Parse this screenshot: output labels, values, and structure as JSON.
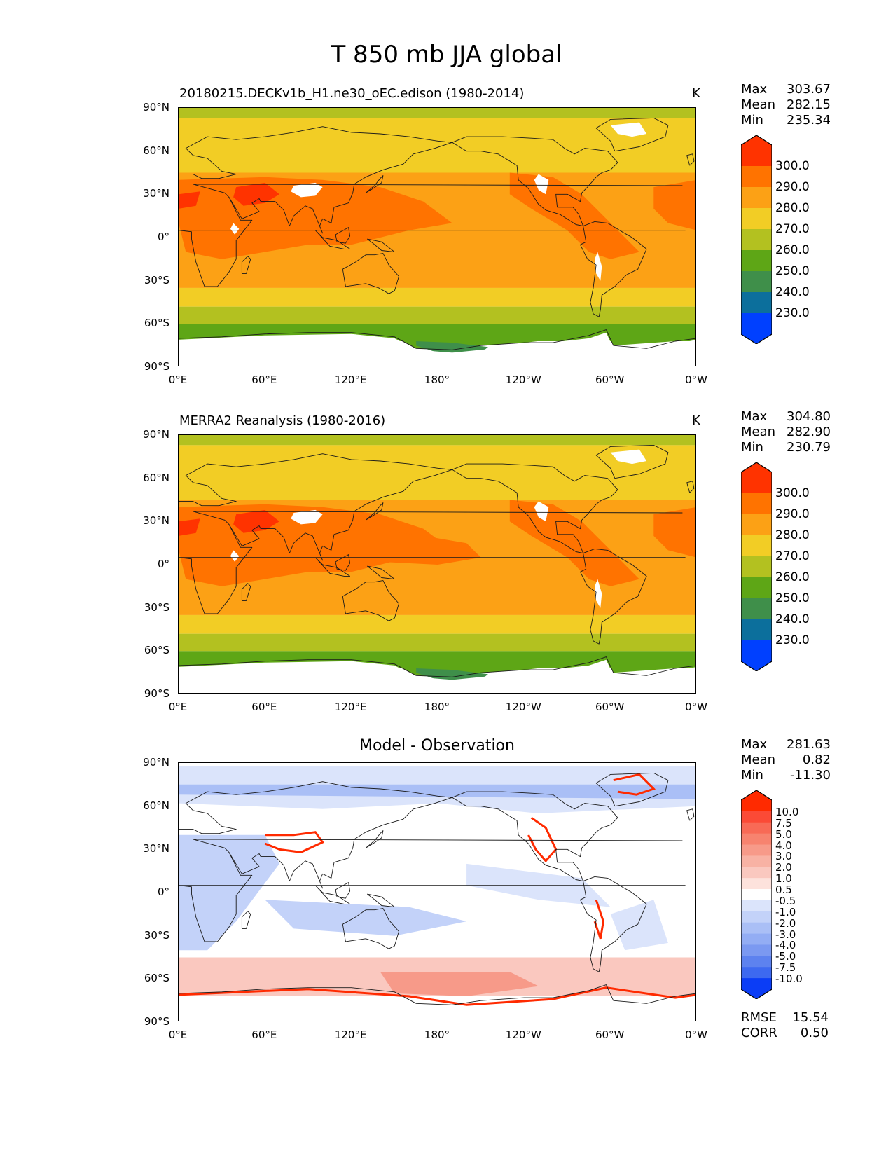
{
  "figure": {
    "title": "T 850 mb JJA global"
  },
  "axes": {
    "lat_labels": [
      "90°N",
      "60°N",
      "30°N",
      "0°",
      "30°S",
      "60°S",
      "90°S"
    ],
    "lon_labels": [
      "0°E",
      "60°E",
      "120°E",
      "180°",
      "120°W",
      "60°W",
      "0°W"
    ]
  },
  "panels": [
    {
      "title": "20180215.DECKv1b_H1.ne30_oEC.edison (1980-2014)",
      "units": "K",
      "stats": {
        "max_label": "Max",
        "max": "303.67",
        "mean_label": "Mean",
        "mean": "282.15",
        "min_label": "Min",
        "min": "235.34"
      },
      "colorbar": {
        "labels": [
          "300.0",
          "290.0",
          "280.0",
          "270.0",
          "260.0",
          "250.0",
          "240.0",
          "230.0"
        ],
        "colors": [
          "#ff3300",
          "#ff7300",
          "#fca115",
          "#f2cd25",
          "#b3c120",
          "#5ea616",
          "#3f8f4a",
          "#0c6f9c",
          "#0040ff"
        ]
      }
    },
    {
      "title": "MERRA2 Reanalysis (1980-2016)",
      "units": "K",
      "stats": {
        "max_label": "Max",
        "max": "304.80",
        "mean_label": "Mean",
        "mean": "282.90",
        "min_label": "Min",
        "min": "230.79"
      },
      "colorbar": {
        "labels": [
          "300.0",
          "290.0",
          "280.0",
          "270.0",
          "260.0",
          "250.0",
          "240.0",
          "230.0"
        ],
        "colors": [
          "#ff3300",
          "#ff7300",
          "#fca115",
          "#f2cd25",
          "#b3c120",
          "#5ea616",
          "#3f8f4a",
          "#0c6f9c",
          "#0040ff"
        ]
      }
    },
    {
      "title": "Model - Observation",
      "units": "",
      "stats": {
        "max_label": "Max",
        "max": "281.63",
        "mean_label": "Mean",
        "mean": "0.82",
        "min_label": "Min",
        "min": "-11.30"
      },
      "colorbar": {
        "labels": [
          "10.0",
          "7.5",
          "5.0",
          "4.0",
          "3.0",
          "2.0",
          "1.0",
          "0.5",
          "-0.5",
          "-1.0",
          "-2.0",
          "-3.0",
          "-4.0",
          "-5.0",
          "-7.5",
          "-10.0"
        ],
        "colors": [
          "#ff2a00",
          "#fb4a36",
          "#f86a56",
          "#f7836f",
          "#f79a89",
          "#f8b2a4",
          "#fac8bf",
          "#fde2dc",
          "#ffffff",
          "#dbe4fb",
          "#c3d2f9",
          "#aabff6",
          "#93adf4",
          "#7b99f1",
          "#5d82ef",
          "#3d69f0",
          "#0b3df6"
        ]
      },
      "metrics": {
        "rmse_label": "RMSE",
        "rmse": "15.54",
        "corr_label": "CORR",
        "corr": "0.50"
      }
    }
  ],
  "map_colors": {
    "band_polar": "#b3c120",
    "band_cold": "#f2cd25",
    "band_mid": "#fca115",
    "band_warm": "#ff7300",
    "band_hot": "#ff3300",
    "band_green": "#5ea616",
    "band_dkgreen": "#3f8f4a",
    "land_mask": "#ffffff",
    "coast": "#1a1a1a"
  }
}
